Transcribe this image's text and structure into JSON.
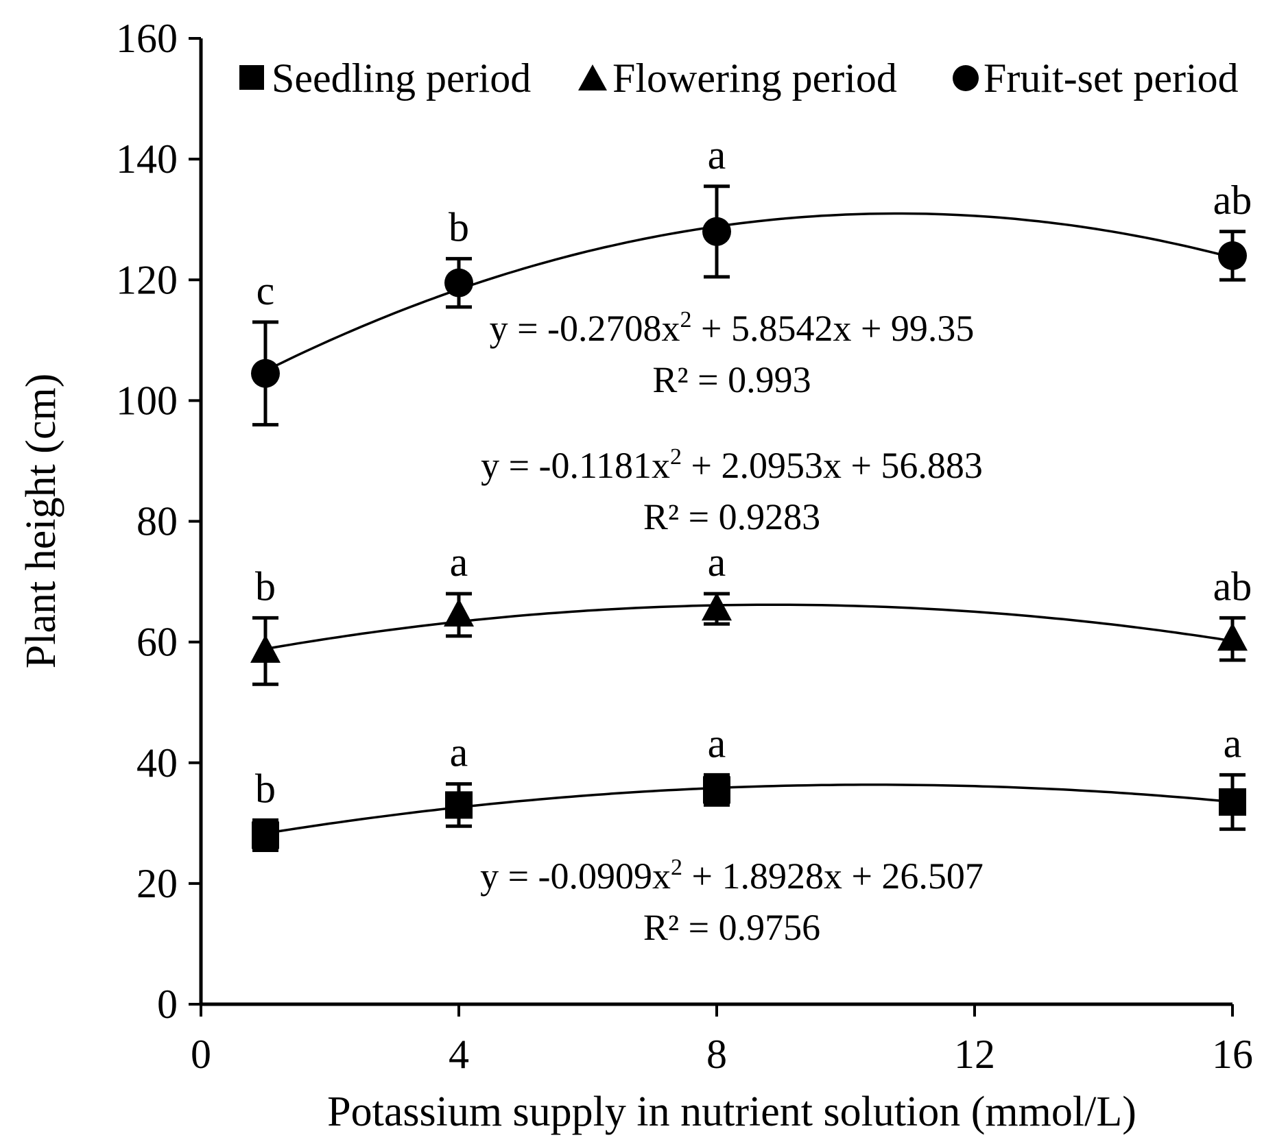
{
  "chart_data": {
    "type": "scatter",
    "xlabel": "Potassium supply in nutrient solution (mmol/L)",
    "ylabel": "Plant height (cm)",
    "xlim": [
      0,
      16
    ],
    "ylim": [
      0,
      160
    ],
    "x_ticks": [
      "0",
      "4",
      "8",
      "12",
      "16"
    ],
    "y_ticks": [
      "0",
      "20",
      "40",
      "60",
      "80",
      "100",
      "120",
      "140",
      "160"
    ],
    "grid": false,
    "legend_position": "top",
    "series": [
      {
        "name": "Seedling period",
        "marker": "square",
        "x": [
          1,
          4,
          8,
          16
        ],
        "values": [
          28,
          33,
          35.5,
          33.5
        ],
        "error": [
          2.5,
          3.5,
          2.5,
          4.5
        ],
        "letters": [
          "b",
          "a",
          "a",
          "a"
        ],
        "fit": {
          "a": -0.0909,
          "b": 1.8928,
          "c": 26.507
        },
        "equation": {
          "prefix": "y = -0.0909x",
          "sup": "2",
          "suffix": " + 1.8928x + 26.507",
          "r2": "R² = 0.9756"
        }
      },
      {
        "name": "Flowering period",
        "marker": "triangle",
        "x": [
          1,
          4,
          8,
          16
        ],
        "values": [
          58.5,
          64.5,
          65.5,
          60.5
        ],
        "error": [
          5.5,
          3.5,
          2.5,
          3.5
        ],
        "letters": [
          "b",
          "a",
          "a",
          "ab"
        ],
        "fit": {
          "a": -0.1181,
          "b": 2.0953,
          "c": 56.883
        },
        "equation": {
          "prefix": "y = -0.1181x",
          "sup": "2",
          "suffix": " + 2.0953x + 56.883",
          "r2": "R² = 0.9283"
        }
      },
      {
        "name": "Fruit-set period",
        "marker": "circle",
        "x": [
          1,
          4,
          8,
          16
        ],
        "values": [
          104.5,
          119.5,
          128,
          124
        ],
        "error": [
          8.5,
          4,
          7.5,
          4
        ],
        "letters": [
          "c",
          "b",
          "a",
          "ab"
        ],
        "fit": {
          "a": -0.2708,
          "b": 5.8542,
          "c": 99.35
        },
        "equation": {
          "prefix": "y = -0.2708x",
          "sup": "2",
          "suffix": " + 5.8542x + 99.35",
          "r2": "R² = 0.993"
        }
      }
    ]
  }
}
